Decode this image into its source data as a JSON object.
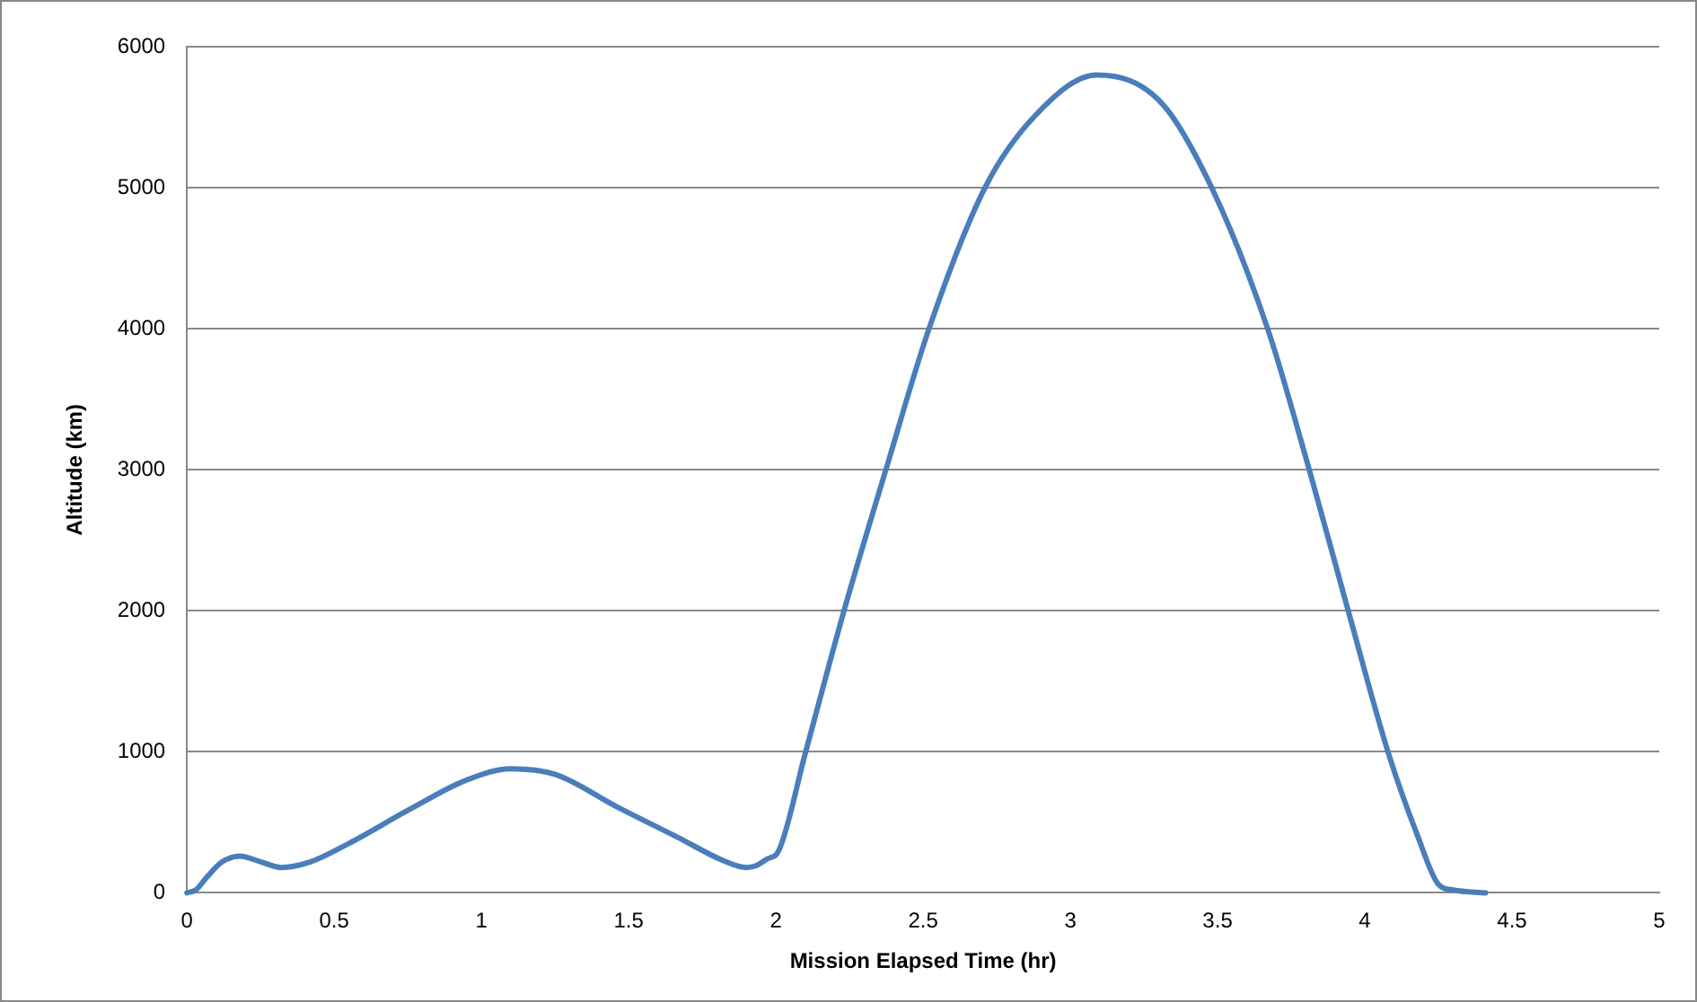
{
  "chart_data": {
    "type": "line",
    "xlabel": "Mission Elapsed Time (hr)",
    "ylabel": "Altitude (km)",
    "x": [
      0,
      0.03,
      0.067,
      0.12,
      0.18,
      0.25,
      0.32,
      0.42,
      0.55,
      0.755,
      0.95,
      1.1,
      1.25,
      1.46,
      1.67,
      1.82,
      1.9,
      1.93,
      1.97,
      2.01,
      2.1,
      2.23,
      2.375,
      2.52,
      2.71,
      2.88,
      3.09,
      3.31,
      3.48,
      3.67,
      3.81,
      3.945,
      4.08,
      4.18,
      4.25,
      4.3,
      4.41
    ],
    "series": [
      {
        "color": "#4a7ebb",
        "values": [
          0,
          20,
          110,
          220,
          260,
          220,
          180,
          220,
          350,
          590,
          800,
          880,
          840,
          610,
          390,
          230,
          180,
          190,
          240,
          300,
          990,
          1990,
          3010,
          4000,
          5000,
          5510,
          5800,
          5600,
          5000,
          4000,
          3010,
          1990,
          990,
          400,
          60,
          20,
          0
        ]
      }
    ],
    "xlim": [
      0,
      5
    ],
    "xticks": [
      0,
      0.5,
      1,
      1.5,
      2,
      2.5,
      3,
      3.5,
      4,
      4.5,
      5
    ],
    "ylim": [
      0,
      6000
    ],
    "yticks": [
      0,
      1000,
      2000,
      3000,
      4000,
      5000,
      6000
    ],
    "grid": "y",
    "legend": false,
    "marker": "none",
    "line_style": "solid"
  }
}
